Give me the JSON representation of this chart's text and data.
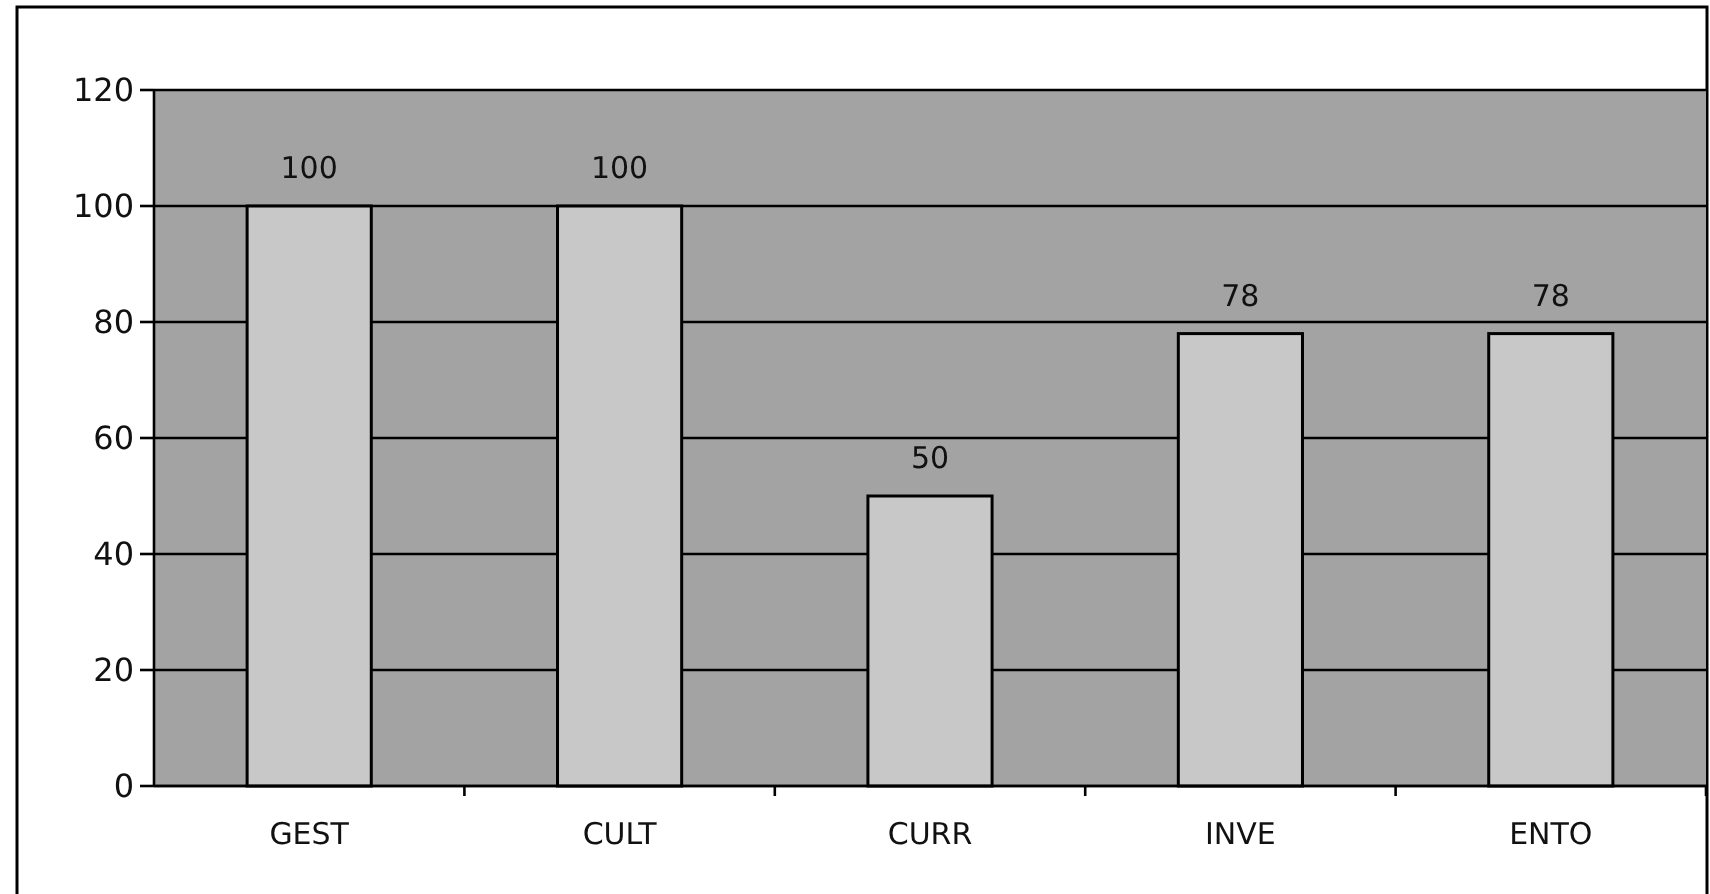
{
  "chart_data": {
    "type": "bar",
    "categories": [
      "GEST",
      "CULT",
      "CURR",
      "INVE",
      "ENTO"
    ],
    "values": [
      100,
      100,
      50,
      78,
      78
    ],
    "color": "#c8c8c8",
    "ylim": [
      0,
      120
    ],
    "yticks": [
      0,
      20,
      40,
      60,
      80,
      100,
      120
    ],
    "grid": "y",
    "data_labels": true
  }
}
